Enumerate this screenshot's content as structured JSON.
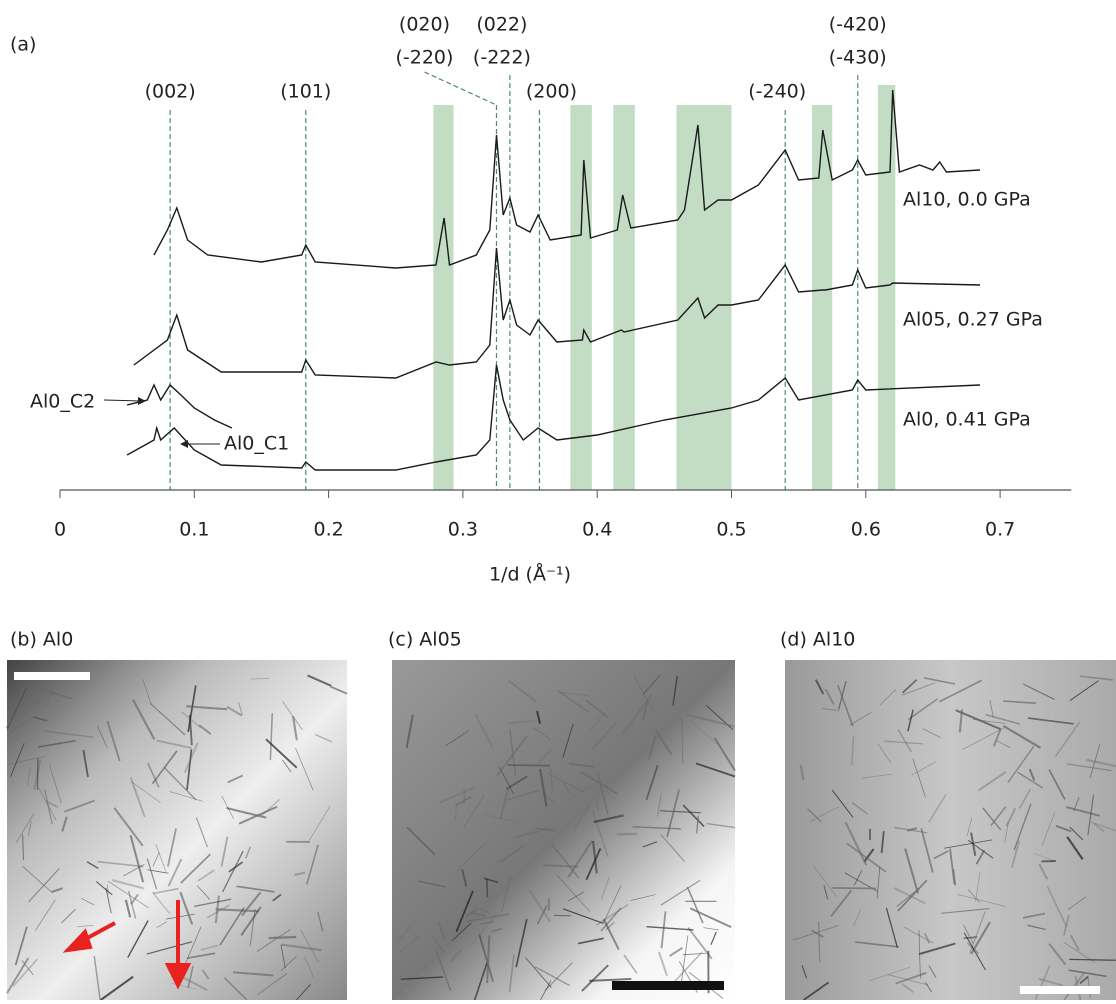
{
  "figure_label": "(a)",
  "chart_data": {
    "type": "line",
    "xlabel": "1/d (Å⁻¹)",
    "xlim": [
      0,
      0.753
    ],
    "xticks": [
      0,
      0.1,
      0.2,
      0.3,
      0.4,
      0.5,
      0.6,
      0.7
    ],
    "ylim": [
      0,
      100
    ],
    "reflections": [
      {
        "labels": [
          "(002)"
        ],
        "x": 0.082
      },
      {
        "labels": [
          "(101)"
        ],
        "x": 0.183
      },
      {
        "labels": [
          "(020)",
          "(-220)"
        ],
        "x": 0.325
      },
      {
        "labels": [
          "(022)",
          "(-222)"
        ],
        "x": 0.335
      },
      {
        "labels": [
          "(200)"
        ],
        "x": 0.357
      },
      {
        "labels": [
          "(-240)"
        ],
        "x": 0.54
      },
      {
        "labels": [
          "(-420)",
          "(-430)"
        ],
        "x": 0.594
      }
    ],
    "band_color": "#c3dcc4",
    "highlight_bands": [
      [
        0.278,
        0.293
      ],
      [
        0.38,
        0.396
      ],
      [
        0.412,
        0.428
      ],
      [
        0.459,
        0.5
      ],
      [
        0.56,
        0.575
      ],
      [
        0.609,
        0.622
      ]
    ],
    "series": [
      {
        "name": "Al10, 0.0 GPa",
        "color": "#1a1a1a",
        "x": [
          0.07,
          0.08,
          0.087,
          0.095,
          0.11,
          0.15,
          0.18,
          0.183,
          0.19,
          0.25,
          0.28,
          0.286,
          0.29,
          0.31,
          0.32,
          0.325,
          0.33,
          0.335,
          0.34,
          0.35,
          0.356,
          0.365,
          0.388,
          0.39,
          0.395,
          0.415,
          0.419,
          0.425,
          0.46,
          0.465,
          0.475,
          0.48,
          0.49,
          0.5,
          0.52,
          0.54,
          0.55,
          0.565,
          0.568,
          0.575,
          0.59,
          0.594,
          0.6,
          0.618,
          0.62,
          0.625,
          0.64,
          0.65,
          0.655,
          0.66,
          0.685
        ],
        "values": [
          58.75,
          65,
          70.5,
          62.5,
          58.75,
          57,
          58.75,
          61.25,
          57,
          55.5,
          56.25,
          68,
          56.25,
          58.75,
          65,
          88.75,
          68.75,
          73,
          66.25,
          64.5,
          68.75,
          62.5,
          63.75,
          82.5,
          63,
          65,
          73.75,
          65.5,
          67.5,
          70,
          91.25,
          70,
          72.5,
          72.5,
          76.25,
          85,
          77.5,
          78,
          90,
          77.5,
          80,
          82.5,
          78.75,
          79.5,
          100,
          79.5,
          81.25,
          80,
          82,
          79.5,
          80
        ]
      },
      {
        "name": "Al05, 0.27 GPa",
        "color": "#1a1a1a",
        "x": [
          0.055,
          0.08,
          0.087,
          0.095,
          0.12,
          0.18,
          0.183,
          0.19,
          0.25,
          0.28,
          0.29,
          0.31,
          0.32,
          0.325,
          0.33,
          0.335,
          0.34,
          0.35,
          0.356,
          0.37,
          0.389,
          0.39,
          0.395,
          0.418,
          0.42,
          0.46,
          0.475,
          0.48,
          0.49,
          0.5,
          0.52,
          0.54,
          0.55,
          0.568,
          0.57,
          0.59,
          0.594,
          0.6,
          0.618,
          0.62,
          0.685
        ],
        "values": [
          31.25,
          37.5,
          43.75,
          35,
          29.5,
          29.5,
          32.5,
          28.75,
          28,
          32,
          31.25,
          32,
          36.25,
          60.5,
          42.5,
          47.5,
          41.25,
          38.75,
          42.5,
          37,
          37.5,
          40,
          37,
          40,
          39.5,
          42.5,
          48,
          43,
          46.25,
          46.25,
          47.5,
          56.25,
          49.5,
          50,
          50,
          51.25,
          55,
          50.5,
          51.25,
          51.75,
          51.25
        ]
      },
      {
        "name": "Al0, 0.41 GPa",
        "color": "#1a1a1a",
        "x": [
          0.05,
          0.07,
          0.072,
          0.075,
          0.085,
          0.1,
          0.12,
          0.18,
          0.183,
          0.19,
          0.25,
          0.28,
          0.31,
          0.32,
          0.325,
          0.33,
          0.335,
          0.345,
          0.356,
          0.37,
          0.4,
          0.45,
          0.5,
          0.52,
          0.54,
          0.55,
          0.59,
          0.594,
          0.6,
          0.685
        ],
        "values": [
          8.75,
          12.5,
          15.5,
          12.5,
          15.5,
          10,
          6.25,
          5.5,
          7,
          5,
          5,
          7,
          8.75,
          12.5,
          31.25,
          22.5,
          17.5,
          12.5,
          15.5,
          12.5,
          13.75,
          17.5,
          20.5,
          22.5,
          28,
          22.5,
          25,
          27.5,
          25,
          26.25
        ]
      },
      {
        "name": "Al0_C2",
        "color": "#1a1a1a",
        "x": [
          0.05,
          0.065,
          0.07,
          0.075,
          0.082,
          0.09,
          0.1,
          0.115,
          0.128
        ],
        "values": [
          21.25,
          22.5,
          26.25,
          22.5,
          26.25,
          23.75,
          20.5,
          17.5,
          15.5
        ]
      }
    ],
    "annotations": [
      "Al0_C1"
    ]
  },
  "images": [
    {
      "label": "(b) Al0"
    },
    {
      "label": "(c) Al05"
    },
    {
      "label": "(d) Al10"
    }
  ]
}
